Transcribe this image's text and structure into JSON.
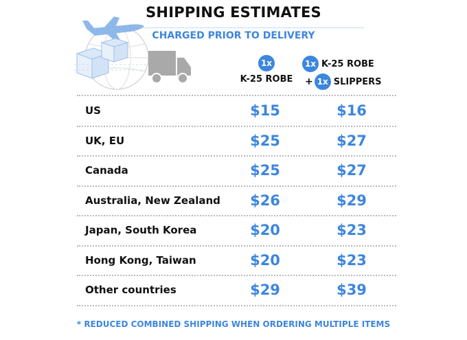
{
  "header": {
    "title": "SHIPPING ESTIMATES",
    "subtitle": "CHARGED PRIOR TO DELIVERY"
  },
  "columns": {
    "col1": {
      "qty": "1x",
      "item": "K-25 ROBE"
    },
    "col2": {
      "qty1": "1x",
      "item1": "K-25 ROBE",
      "plus": "+",
      "qty2": "1x",
      "item2": "SLIPPERS"
    }
  },
  "rows": [
    {
      "country": "US",
      "robe": "$15",
      "robe_slippers": "$16"
    },
    {
      "country": "UK, EU",
      "robe": "$25",
      "robe_slippers": "$27"
    },
    {
      "country": "Canada",
      "robe": "$25",
      "robe_slippers": "$27"
    },
    {
      "country": "Australia, New Zealand",
      "robe": "$26",
      "robe_slippers": "$29"
    },
    {
      "country": "Japan, South Korea",
      "robe": "$20",
      "robe_slippers": "$23"
    },
    {
      "country": "Hong Kong, Taiwan",
      "robe": "$20",
      "robe_slippers": "$23"
    },
    {
      "country": "Other countries",
      "robe": "$29",
      "robe_slippers": "$39"
    }
  ],
  "footnote": "* REDUCED COMBINED SHIPPING WHEN ORDERING MULTIPLE ITEMS",
  "colors": {
    "accent": "#3d86dd",
    "text": "#111111",
    "divider": "#b9b9b9",
    "illustration": "#c9ddf4",
    "truck": "#a9a9a9"
  },
  "icons": [
    "airplane-icon",
    "globe-icon",
    "boxes-icon",
    "truck-icon"
  ]
}
